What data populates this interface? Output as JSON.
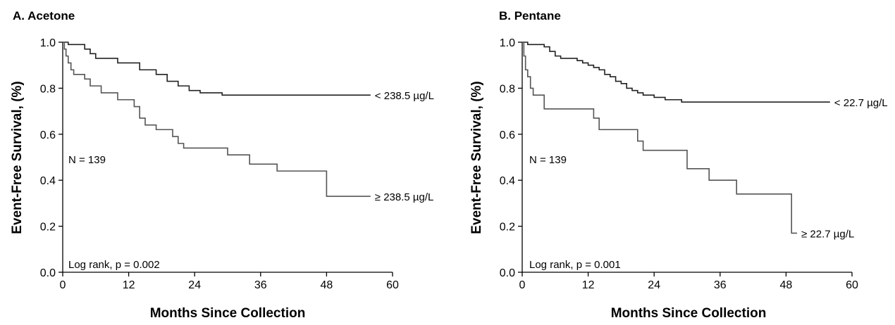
{
  "chart_data": [
    {
      "type": "line",
      "step": true,
      "title": "A. Acetone",
      "xlabel": "Months Since Collection",
      "ylabel": "Event-Free Survival, (%)",
      "xlim": [
        0,
        60
      ],
      "ylim": [
        0,
        1.0
      ],
      "xticks": [
        "0",
        "12",
        "24",
        "36",
        "48",
        "60"
      ],
      "yticks": [
        "0.0",
        "0.2",
        "0.4",
        "0.6",
        "0.8",
        "1.0"
      ],
      "grid": false,
      "annotations": {
        "n": "N = 139",
        "logrank": "Log rank, p = 0.002"
      },
      "series": [
        {
          "name": "< 238.5 µg/L",
          "color": "#222222",
          "x": [
            0,
            1,
            4,
            5,
            6,
            10,
            14,
            17,
            19,
            21,
            23,
            25,
            29,
            56
          ],
          "y": [
            1.0,
            0.99,
            0.97,
            0.95,
            0.93,
            0.91,
            0.88,
            0.86,
            0.83,
            0.81,
            0.79,
            0.78,
            0.77,
            0.77
          ]
        },
        {
          "name": "≥ 238.5 µg/L",
          "color": "#555555",
          "x": [
            0,
            0.3,
            0.6,
            1,
            1.5,
            2,
            4,
            5,
            7,
            10,
            13,
            14,
            15,
            17,
            20,
            21,
            22,
            23,
            30,
            34,
            39,
            48,
            56
          ],
          "y": [
            1.0,
            0.97,
            0.94,
            0.91,
            0.88,
            0.86,
            0.84,
            0.81,
            0.78,
            0.75,
            0.72,
            0.67,
            0.64,
            0.62,
            0.59,
            0.56,
            0.54,
            0.54,
            0.51,
            0.47,
            0.44,
            0.33,
            0.33
          ]
        }
      ]
    },
    {
      "type": "line",
      "step": true,
      "title": "B. Pentane",
      "xlabel": "Months Since Collection",
      "ylabel": "Event-Free Survival, (%)",
      "xlim": [
        0,
        60
      ],
      "ylim": [
        0,
        1.0
      ],
      "xticks": [
        "0",
        "12",
        "24",
        "36",
        "48",
        "60"
      ],
      "yticks": [
        "0.0",
        "0.2",
        "0.4",
        "0.6",
        "0.8",
        "1.0"
      ],
      "grid": false,
      "annotations": {
        "n": "N = 139",
        "logrank": "Log rank, p = 0.001"
      },
      "series": [
        {
          "name": "< 22.7 µg/L",
          "color": "#222222",
          "x": [
            0,
            1,
            4,
            5,
            6,
            7,
            10,
            11,
            12,
            13,
            14,
            15,
            16,
            17,
            18,
            19,
            20,
            21,
            22,
            24,
            26,
            29,
            56
          ],
          "y": [
            1.0,
            0.99,
            0.98,
            0.96,
            0.94,
            0.93,
            0.92,
            0.91,
            0.9,
            0.89,
            0.88,
            0.86,
            0.85,
            0.83,
            0.82,
            0.8,
            0.79,
            0.78,
            0.77,
            0.76,
            0.75,
            0.74,
            0.74
          ]
        },
        {
          "name": "≥ 22.7 µg/L",
          "color": "#555555",
          "x": [
            0,
            0.3,
            0.6,
            1,
            1.5,
            2,
            4,
            13,
            14,
            21,
            22,
            30,
            34,
            39,
            48,
            49,
            50
          ],
          "y": [
            1.0,
            0.94,
            0.88,
            0.85,
            0.8,
            0.77,
            0.71,
            0.67,
            0.62,
            0.57,
            0.53,
            0.45,
            0.4,
            0.34,
            0.34,
            0.17,
            0.17
          ]
        }
      ]
    }
  ]
}
